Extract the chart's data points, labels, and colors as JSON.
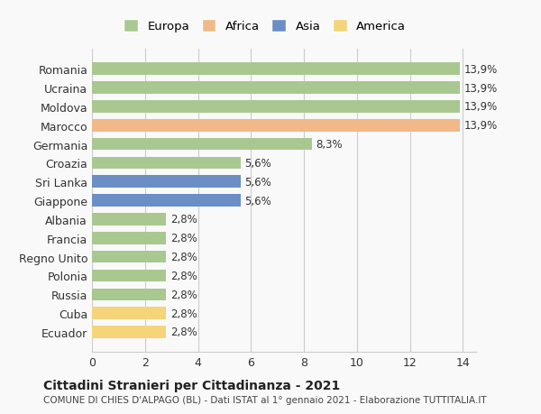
{
  "categories": [
    "Romania",
    "Ucraina",
    "Moldova",
    "Marocco",
    "Germania",
    "Croazia",
    "Sri Lanka",
    "Giappone",
    "Albania",
    "Francia",
    "Regno Unito",
    "Polonia",
    "Russia",
    "Cuba",
    "Ecuador"
  ],
  "values": [
    13.9,
    13.9,
    13.9,
    13.9,
    8.3,
    5.6,
    5.6,
    5.6,
    2.8,
    2.8,
    2.8,
    2.8,
    2.8,
    2.8,
    2.8
  ],
  "labels": [
    "13,9%",
    "13,9%",
    "13,9%",
    "13,9%",
    "8,3%",
    "5,6%",
    "5,6%",
    "5,6%",
    "2,8%",
    "2,8%",
    "2,8%",
    "2,8%",
    "2,8%",
    "2,8%",
    "2,8%"
  ],
  "colors": [
    "#a8c890",
    "#a8c890",
    "#a8c890",
    "#f0b987",
    "#a8c890",
    "#a8c890",
    "#6b8fc4",
    "#6b8fc4",
    "#a8c890",
    "#a8c890",
    "#a8c890",
    "#a8c890",
    "#a8c890",
    "#f5d47a",
    "#f5d47a"
  ],
  "legend_labels": [
    "Europa",
    "Africa",
    "Asia",
    "America"
  ],
  "legend_colors": [
    "#a8c890",
    "#f0b987",
    "#6b8fc4",
    "#f5d47a"
  ],
  "xlim": [
    0,
    14
  ],
  "xticks": [
    0,
    2,
    4,
    6,
    8,
    10,
    12,
    14
  ],
  "title": "Cittadini Stranieri per Cittadinanza - 2021",
  "subtitle": "COMUNE DI CHIES D'ALPAGO (BL) - Dati ISTAT al 1° gennaio 2021 - Elaborazione TUTTITALIA.IT",
  "bg_color": "#f9f9f9",
  "grid_color": "#cccccc"
}
